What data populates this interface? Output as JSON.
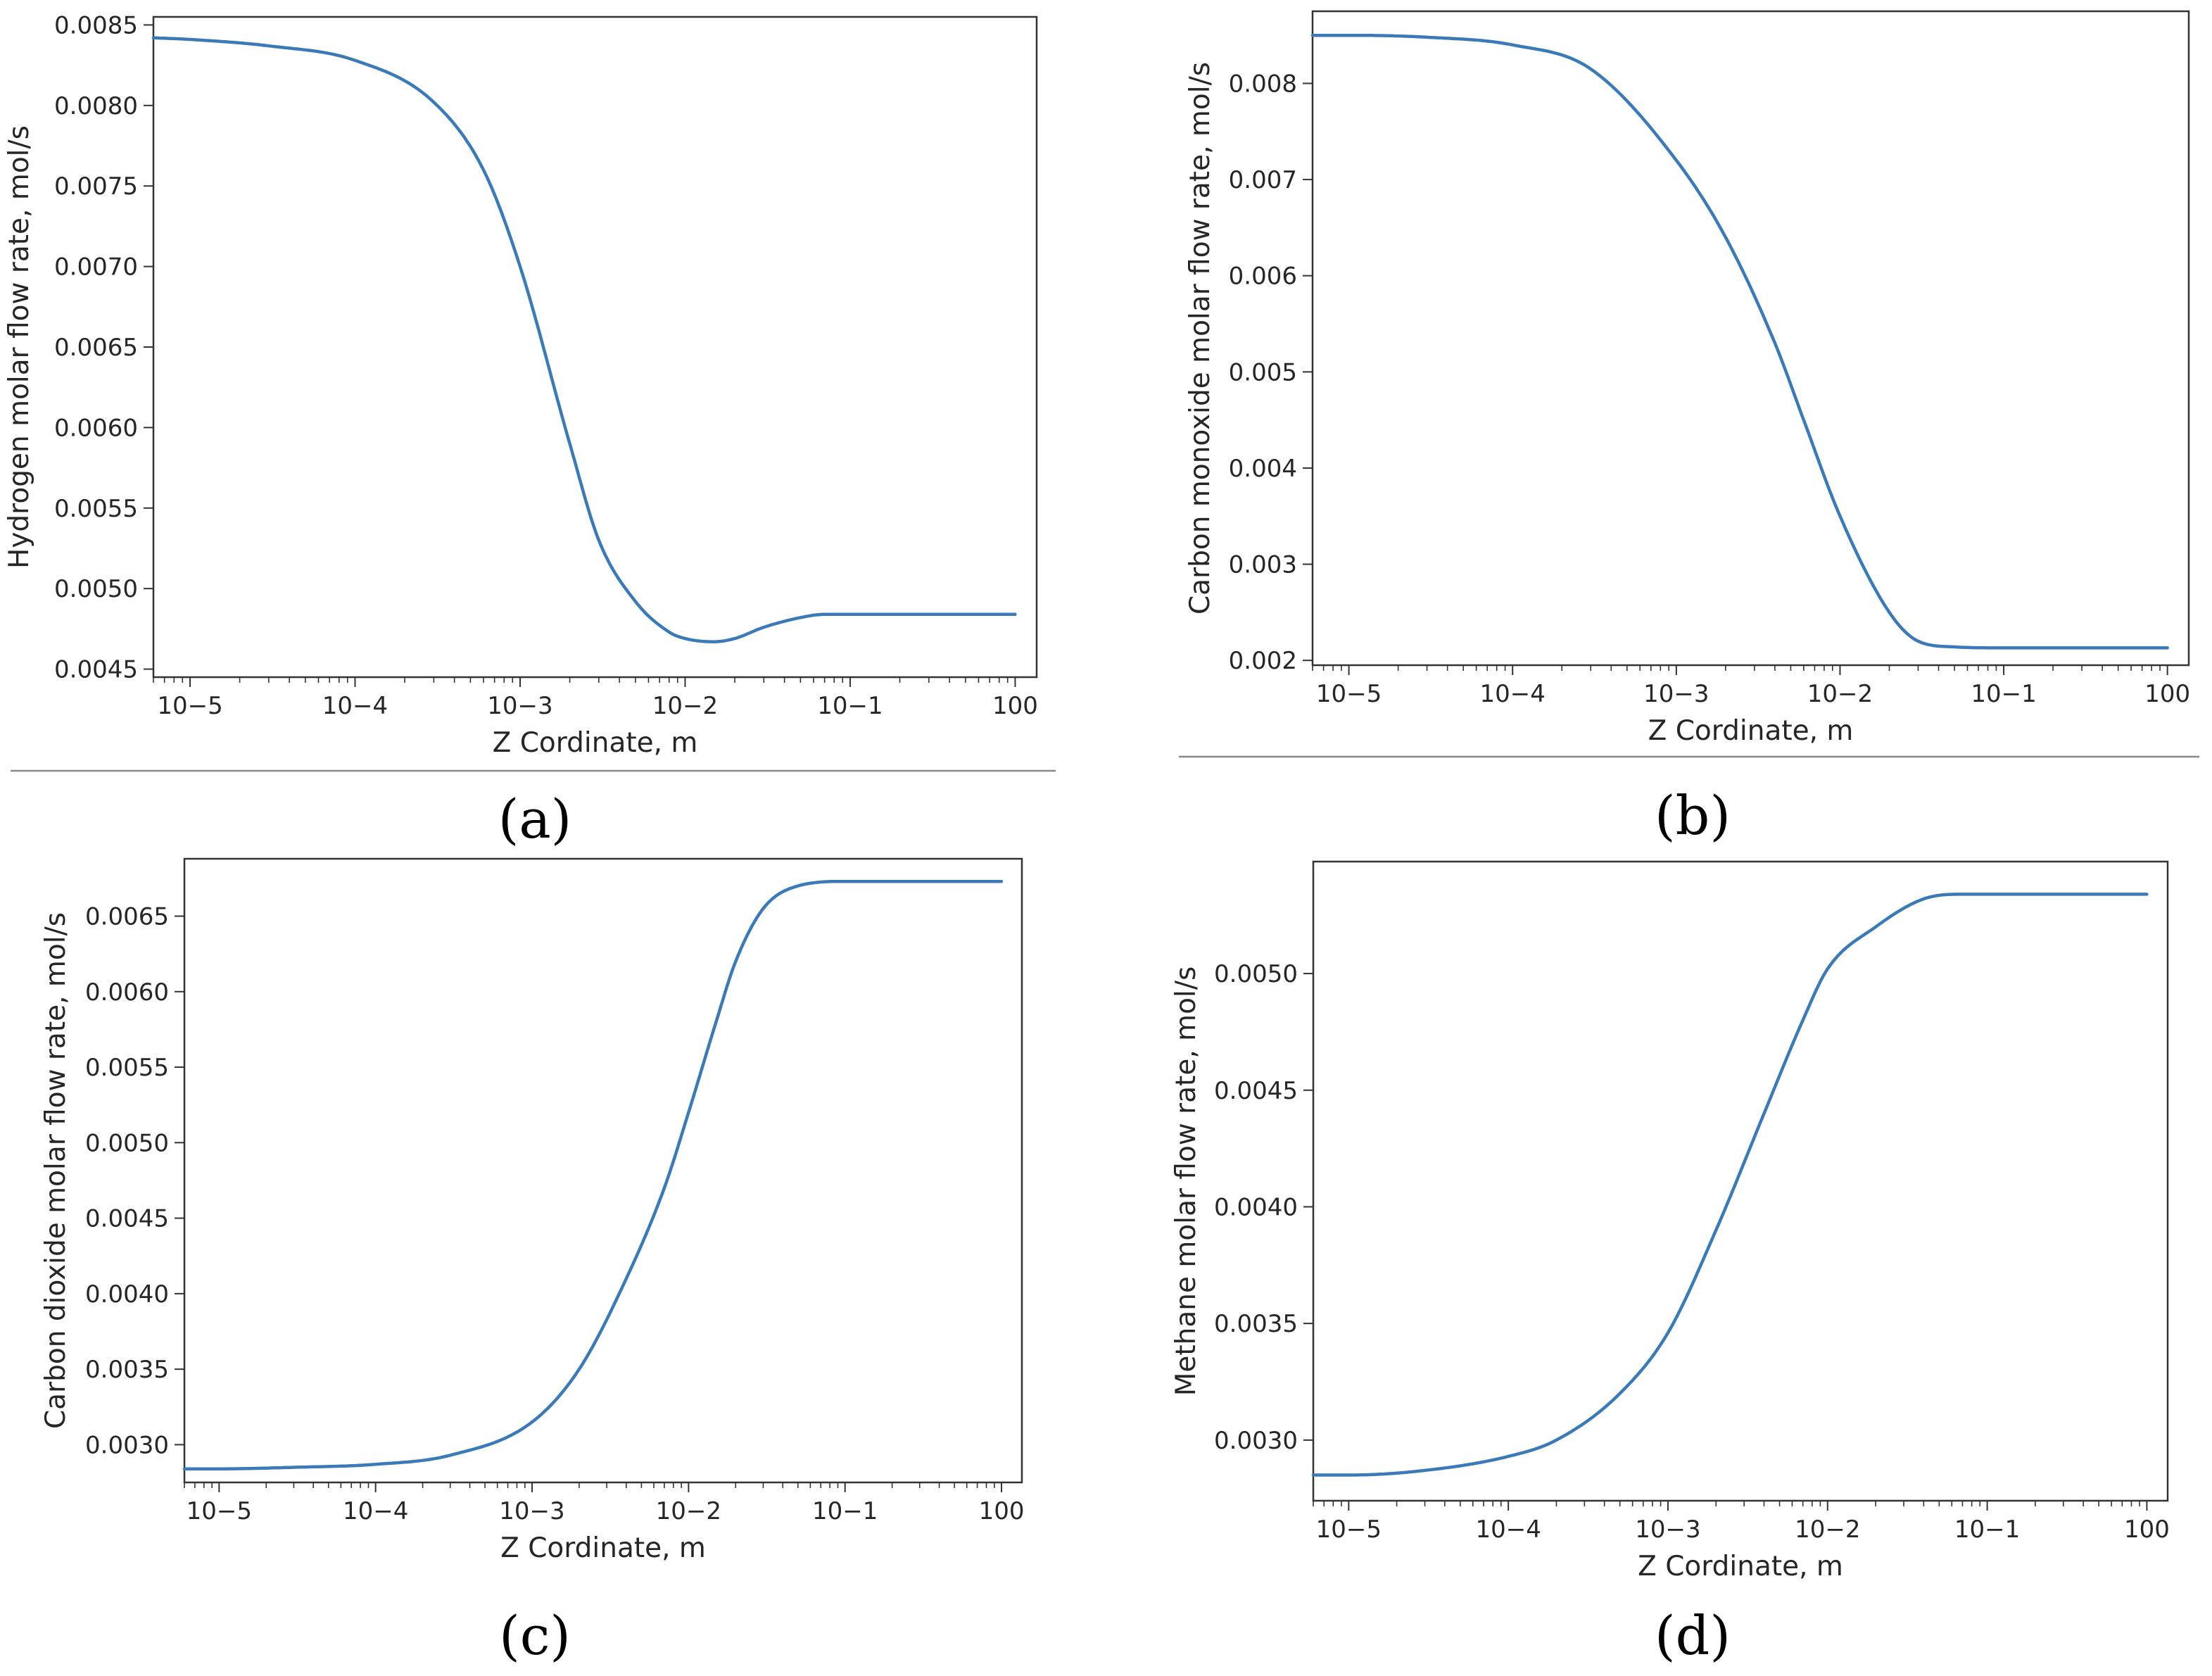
{
  "figure": {
    "captions": [
      "(a)",
      "(b)",
      "(c)",
      "(d)"
    ]
  },
  "colors": {
    "line": "#3a7ab8",
    "frame": "#333333",
    "text": "#262626"
  },
  "chart_data": [
    {
      "type": "line",
      "id": "a",
      "title": "",
      "xscale": "log",
      "xlabel": "Z Cordinate, m",
      "ylabel": "Hydrogen molar flow rate, mol/s",
      "xlim": [
        6e-06,
        1.35
      ],
      "ylim": [
        0.00445,
        0.00855
      ],
      "x_tick_labels": [
        "10−5",
        "10−4",
        "10−3",
        "10−2",
        "10−1",
        "100"
      ],
      "x_tick_exps": [
        -5,
        -4,
        -3,
        -2,
        -1,
        0
      ],
      "y_ticks": [
        0.0045,
        0.005,
        0.0055,
        0.006,
        0.0065,
        0.007,
        0.0075,
        0.008,
        0.0085
      ],
      "y_tick_labels": [
        "0.0045",
        "0.0050",
        "0.0055",
        "0.0060",
        "0.0065",
        "0.0070",
        "0.0075",
        "0.0080",
        "0.0085"
      ],
      "series": [
        {
          "name": "Hydrogen",
          "x": [
            6e-06,
            1e-05,
            3e-05,
            0.0001,
            0.0003,
            0.0006,
            0.001,
            0.002,
            0.003,
            0.005,
            0.008,
            0.01,
            0.015,
            0.02,
            0.03,
            0.05,
            0.07,
            0.1,
            0.3,
            1
          ],
          "y": [
            0.00842,
            0.00841,
            0.00837,
            0.00828,
            0.00802,
            0.0076,
            0.007,
            0.0059,
            0.0053,
            0.00492,
            0.00473,
            0.00469,
            0.00467,
            0.00469,
            0.00476,
            0.00482,
            0.00484,
            0.00484,
            0.00484,
            0.00484
          ]
        }
      ]
    },
    {
      "type": "line",
      "id": "b",
      "title": "",
      "xscale": "log",
      "xlabel": "Z Cordinate, m",
      "ylabel": "Carbon monoxide molar flow rate, mol/s",
      "xlim": [
        6e-06,
        1.35
      ],
      "ylim": [
        0.00195,
        0.00875
      ],
      "x_tick_labels": [
        "10−5",
        "10−4",
        "10−3",
        "10−2",
        "10−1",
        "100"
      ],
      "x_tick_exps": [
        -5,
        -4,
        -3,
        -2,
        -1,
        0
      ],
      "y_ticks": [
        0.002,
        0.003,
        0.004,
        0.005,
        0.006,
        0.007,
        0.008
      ],
      "y_tick_labels": [
        "0.002",
        "0.003",
        "0.004",
        "0.005",
        "0.006",
        "0.007",
        "0.008"
      ],
      "series": [
        {
          "name": "Carbon monoxide",
          "x": [
            6e-06,
            1e-05,
            3e-05,
            0.0001,
            0.0003,
            0.001,
            0.002,
            0.004,
            0.006,
            0.01,
            0.02,
            0.03,
            0.05,
            0.1,
            0.3,
            1
          ],
          "y": [
            0.0085,
            0.0085,
            0.00848,
            0.0084,
            0.00815,
            0.0072,
            0.0064,
            0.0053,
            0.0045,
            0.0035,
            0.0025,
            0.0022,
            0.00214,
            0.00213,
            0.00213,
            0.00213
          ]
        }
      ]
    },
    {
      "type": "line",
      "id": "c",
      "title": "",
      "xscale": "log",
      "xlabel": "Z Cordinate, m",
      "ylabel": "Carbon dioxide molar flow rate, mol/s",
      "xlim": [
        6e-06,
        1.35
      ],
      "ylim": [
        0.00275,
        0.00688
      ],
      "x_tick_labels": [
        "10−5",
        "10−4",
        "10−3",
        "10−2",
        "10−1",
        "100"
      ],
      "x_tick_exps": [
        -5,
        -4,
        -3,
        -2,
        -1,
        0
      ],
      "y_ticks": [
        0.003,
        0.0035,
        0.004,
        0.0045,
        0.005,
        0.0055,
        0.006,
        0.0065
      ],
      "y_tick_labels": [
        "0.0030",
        "0.0035",
        "0.0040",
        "0.0045",
        "0.0050",
        "0.0055",
        "0.0060",
        "0.0065"
      ],
      "series": [
        {
          "name": "Carbon dioxide",
          "x": [
            6e-06,
            1e-05,
            3e-05,
            0.0001,
            0.0003,
            0.001,
            0.002,
            0.004,
            0.007,
            0.01,
            0.015,
            0.02,
            0.03,
            0.05,
            0.1,
            0.3,
            1
          ],
          "y": [
            0.00284,
            0.00284,
            0.00285,
            0.00287,
            0.00293,
            0.00315,
            0.0035,
            0.0041,
            0.0047,
            0.0052,
            0.0058,
            0.0062,
            0.00655,
            0.0067,
            0.00673,
            0.00673,
            0.00673
          ]
        }
      ]
    },
    {
      "type": "line",
      "id": "d",
      "title": "",
      "xscale": "log",
      "xlabel": "Z Cordinate, m",
      "ylabel": "Methane molar flow rate, mol/s",
      "xlim": [
        6e-06,
        1.35
      ],
      "ylim": [
        0.00274,
        0.00548
      ],
      "x_tick_labels": [
        "10−5",
        "10−4",
        "10−3",
        "10−2",
        "10−1",
        "100"
      ],
      "x_tick_exps": [
        -5,
        -4,
        -3,
        -2,
        -1,
        0
      ],
      "y_ticks": [
        0.003,
        0.0035,
        0.004,
        0.0045,
        0.005
      ],
      "y_tick_labels": [
        "0.0030",
        "0.0035",
        "0.0040",
        "0.0045",
        "0.0050"
      ],
      "series": [
        {
          "name": "Methane",
          "x": [
            6e-06,
            1e-05,
            3e-05,
            0.0001,
            0.0002,
            0.0005,
            0.001,
            0.002,
            0.004,
            0.007,
            0.01,
            0.02,
            0.04,
            0.07,
            0.1,
            0.3,
            1
          ],
          "y": [
            0.00285,
            0.00285,
            0.00287,
            0.00293,
            0.003,
            0.0032,
            0.00346,
            0.0039,
            0.0044,
            0.0048,
            0.00502,
            0.0052,
            0.00532,
            0.00534,
            0.00534,
            0.00534,
            0.00534
          ]
        }
      ]
    }
  ]
}
